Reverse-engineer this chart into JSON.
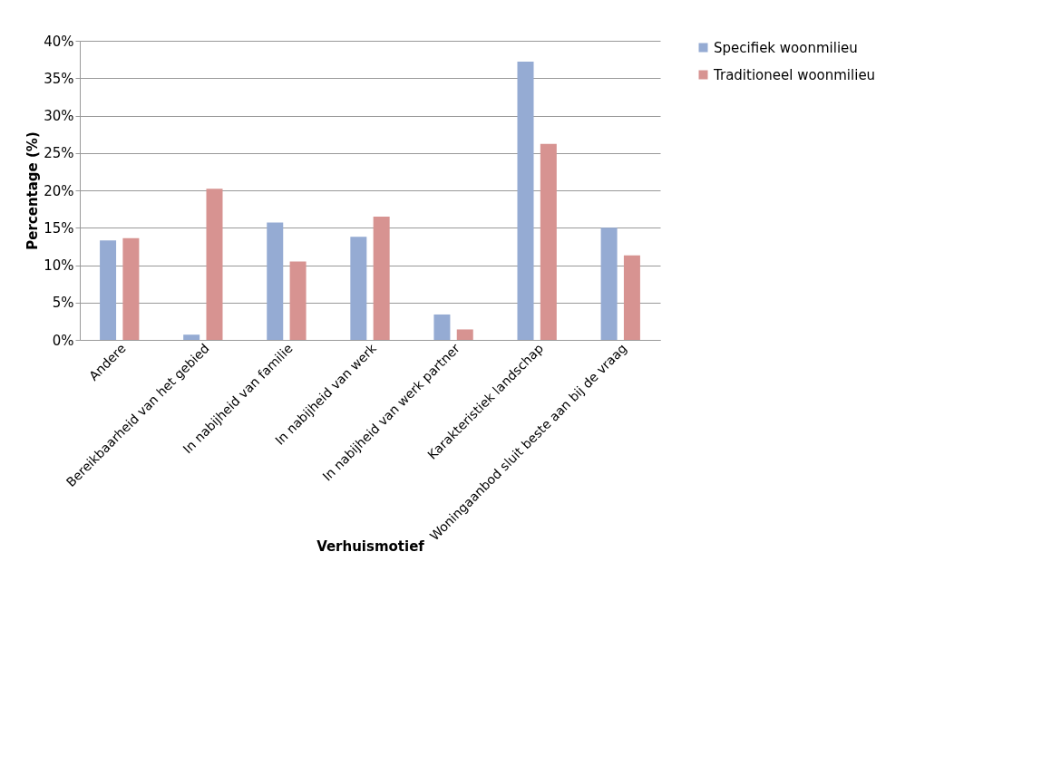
{
  "chart_data": {
    "type": "bar",
    "xlabel": "Verhuismotief",
    "ylabel": "Percentage (%)",
    "categories": [
      "Andere",
      "Bereikbaarheid van het gebied",
      "In nabijheid van familie",
      "In nabijheid van werk",
      "In nabijheid van werk partner",
      "Karakteristiek landschap",
      "Woningaanbod sluit beste aan bij de vraag"
    ],
    "series": [
      {
        "name": "Specifiek woonmilieu",
        "color": "#95abd3",
        "values": [
          13.3,
          0.7,
          15.7,
          13.8,
          3.4,
          37.2,
          15.0
        ]
      },
      {
        "name": "Traditioneel woonmilieu",
        "color": "#d79391",
        "values": [
          13.6,
          20.2,
          10.5,
          16.5,
          1.4,
          26.2,
          11.3
        ]
      }
    ],
    "ylim": [
      0,
      40
    ],
    "yticks": [
      {
        "value": 0,
        "label": "0%"
      },
      {
        "value": 5,
        "label": "5%"
      },
      {
        "value": 10,
        "label": "10%"
      },
      {
        "value": 15,
        "label": "15%"
      },
      {
        "value": 20,
        "label": "20%"
      },
      {
        "value": 25,
        "label": "25%"
      },
      {
        "value": 30,
        "label": "30%"
      },
      {
        "value": 35,
        "label": "35%"
      },
      {
        "value": 40,
        "label": "40%"
      }
    ],
    "grid": "y",
    "legend": "right"
  }
}
